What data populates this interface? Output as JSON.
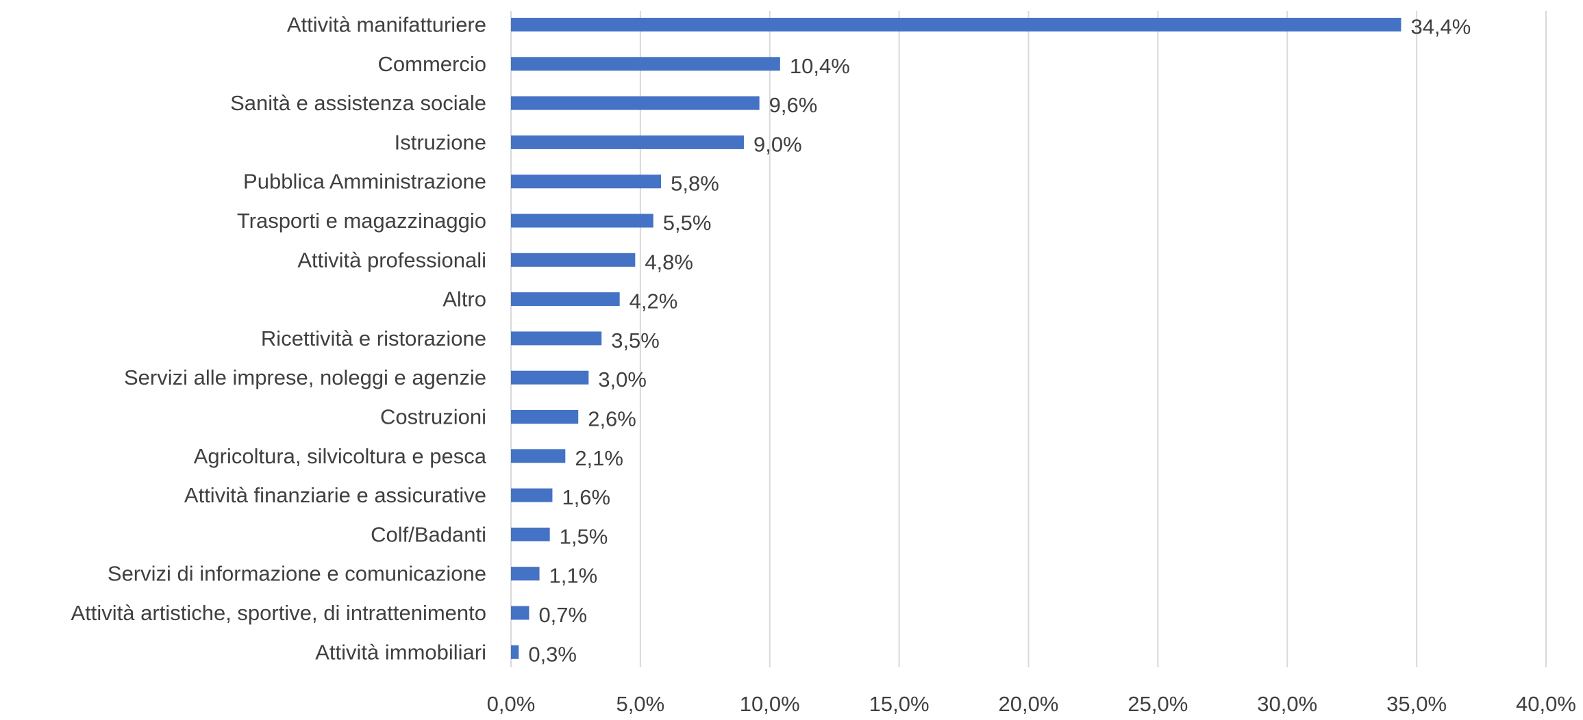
{
  "chart_data": {
    "type": "bar",
    "orientation": "horizontal",
    "title": "",
    "xlabel": "",
    "ylabel": "",
    "xlim": [
      0,
      40
    ],
    "grid": true,
    "legend": "none",
    "bar_color": "#4472c4",
    "categories": [
      "Attività manifatturiere",
      "Commercio",
      "Sanità e assistenza sociale",
      "Istruzione",
      "Pubblica Amministrazione",
      "Trasporti e magazzinaggio",
      "Attività professionali",
      "Altro",
      "Ricettività e ristorazione",
      "Servizi alle imprese, noleggi e agenzie",
      "Costruzioni",
      "Agricoltura, silvicoltura e pesca",
      "Attività finanziarie e assicurative",
      "Colf/Badanti",
      "Servizi di informazione e comunicazione",
      "Attività artistiche, sportive, di intrattenimento",
      "Attività immobiliari"
    ],
    "values": [
      34.4,
      10.4,
      9.6,
      9.0,
      5.8,
      5.5,
      4.8,
      4.2,
      3.5,
      3.0,
      2.6,
      2.1,
      1.6,
      1.5,
      1.1,
      0.7,
      0.3
    ],
    "data_labels": [
      "34,4%",
      "10,4%",
      "9,6%",
      "9,0%",
      "5,8%",
      "5,5%",
      "4,8%",
      "4,2%",
      "3,5%",
      "3,0%",
      "2,6%",
      "2,1%",
      "1,6%",
      "1,5%",
      "1,1%",
      "0,7%",
      "0,3%"
    ],
    "x_ticks": [
      0,
      5,
      10,
      15,
      20,
      25,
      30,
      35,
      40
    ],
    "x_tick_labels": [
      "0,0%",
      "5,0%",
      "10,0%",
      "15,0%",
      "20,0%",
      "25,0%",
      "30,0%",
      "35,0%",
      "40,0%"
    ]
  }
}
